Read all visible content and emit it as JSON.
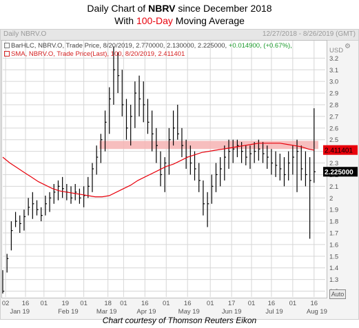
{
  "title": {
    "line1_prefix": "Daily Chart of ",
    "ticker": "NBRV",
    "line1_suffix": " since December 2018",
    "line2_prefix": "With ",
    "period": "100-Day",
    "line2_suffix": " Moving Average"
  },
  "header": {
    "left": "Daily NBRV.O",
    "right": "12/27/2018 - 8/26/2019 (GMT)"
  },
  "legend": {
    "bar_prefix": "BarHLC, NBRV.O, Trade Price, 8/20/2019, 2.770000, 2.130000, 2.225000, ",
    "bar_change": "+0.014900, (+0.67%),",
    "sma": "SMA, NBRV.O, Trade Price(Last), 100, 8/20/2019, 2.411401"
  },
  "auto_label": "Auto",
  "caption": "Chart courtesy of Thomson Reuters Eikon",
  "colors": {
    "price_bars": "#000000",
    "sma_line": "#e8000b",
    "resistance_band": "#f6b3b3",
    "sma_marker": "#e8000b",
    "price_marker": "#000000",
    "grid": "#d6d6d6"
  },
  "chart_data": {
    "type": "bar",
    "style": "HLC bars with moving average line",
    "currency": "USD",
    "y_axis_side": "right",
    "ylim": [
      1.15,
      3.35
    ],
    "y_ticks": [
      1.2,
      1.3,
      1.4,
      1.5,
      1.6,
      1.7,
      1.8,
      1.9,
      2,
      2.1,
      2.2,
      2.3,
      2.4,
      2.5,
      2.6,
      2.7,
      2.8,
      2.9,
      3.0,
      3.1,
      3.2
    ],
    "y_tick_labels": [
      "1.2",
      "1.3",
      "1.4",
      "1.5",
      "1.6",
      "1.7",
      "1.8",
      "1.9",
      "2",
      "2.1",
      "2.2",
      "2.3",
      "2.4",
      "2.5",
      "2.6",
      "2.7",
      "2.8",
      "2.9",
      "3.0",
      "3.1",
      "3.2"
    ],
    "x_ticks": [
      {
        "day": 2,
        "label": "02"
      },
      {
        "day": 16,
        "label": "16"
      },
      {
        "day": 29,
        "label": "01"
      },
      {
        "day": 44,
        "label": "19"
      },
      {
        "day": 57,
        "label": "01"
      },
      {
        "day": 74,
        "label": "18"
      },
      {
        "day": 85,
        "label": "01"
      },
      {
        "day": 100,
        "label": "16"
      },
      {
        "day": 115,
        "label": "01"
      },
      {
        "day": 130,
        "label": "16"
      },
      {
        "day": 146,
        "label": "01"
      },
      {
        "day": 161,
        "label": "17"
      },
      {
        "day": 175,
        "label": "01"
      },
      {
        "day": 189,
        "label": "16"
      },
      {
        "day": 204,
        "label": "01"
      },
      {
        "day": 219,
        "label": "16"
      }
    ],
    "months": [
      {
        "day": 12,
        "label": "Jan 19"
      },
      {
        "day": 46,
        "label": "Feb 19"
      },
      {
        "day": 73,
        "label": "Mar 19"
      },
      {
        "day": 101,
        "label": "Apr 19"
      },
      {
        "day": 131,
        "label": "May 19"
      },
      {
        "day": 161,
        "label": "Jun 19"
      },
      {
        "day": 191,
        "label": "Jul 19"
      },
      {
        "day": 221,
        "label": "Aug 19"
      }
    ],
    "x_range": [
      0,
      222
    ],
    "band": {
      "from": 2.42,
      "to": 2.49
    },
    "last_sma": {
      "value": 2.411401,
      "label": "2.411401"
    },
    "last_price": {
      "value": 2.225,
      "label": "2.225000"
    },
    "bar_step": 3,
    "ohlc_bars": [
      [
        0,
        1.18,
        1.38,
        1.2
      ],
      [
        3,
        1.36,
        1.52,
        1.48
      ],
      [
        6,
        1.55,
        1.8,
        1.72
      ],
      [
        9,
        1.75,
        1.88,
        1.8
      ],
      [
        12,
        1.7,
        1.85,
        1.78
      ],
      [
        15,
        1.72,
        1.9,
        1.84
      ],
      [
        18,
        1.85,
        2.0,
        1.92
      ],
      [
        21,
        1.82,
        2.05,
        1.95
      ],
      [
        24,
        1.85,
        1.98,
        1.9
      ],
      [
        27,
        1.8,
        1.92,
        1.85
      ],
      [
        30,
        1.85,
        2.02,
        1.95
      ],
      [
        33,
        1.88,
        2.05,
        2.0
      ],
      [
        36,
        1.95,
        2.12,
        2.05
      ],
      [
        39,
        1.98,
        2.15,
        2.1
      ],
      [
        42,
        2.0,
        2.18,
        2.08
      ],
      [
        45,
        1.98,
        2.12,
        2.05
      ],
      [
        48,
        1.95,
        2.1,
        2.0
      ],
      [
        51,
        1.98,
        2.12,
        2.05
      ],
      [
        54,
        1.95,
        2.08,
        2.0
      ],
      [
        57,
        1.92,
        2.1,
        2.02
      ],
      [
        60,
        2.0,
        2.18,
        2.1
      ],
      [
        63,
        2.05,
        2.3,
        2.25
      ],
      [
        66,
        2.2,
        2.45,
        2.35
      ],
      [
        69,
        2.3,
        2.55,
        2.5
      ],
      [
        72,
        2.4,
        2.75,
        2.65
      ],
      [
        75,
        2.55,
        2.95,
        2.85
      ],
      [
        78,
        2.8,
        3.3,
        3.1
      ],
      [
        81,
        2.9,
        3.25,
        3.05
      ],
      [
        84,
        2.7,
        3.1,
        2.8
      ],
      [
        87,
        2.5,
        2.85,
        2.6
      ],
      [
        90,
        2.45,
        2.8,
        2.7
      ],
      [
        93,
        2.6,
        3.0,
        2.9
      ],
      [
        96,
        2.7,
        3.05,
        2.85
      ],
      [
        99,
        2.65,
        3.0,
        2.8
      ],
      [
        102,
        2.55,
        2.85,
        2.65
      ],
      [
        105,
        2.4,
        2.75,
        2.55
      ],
      [
        108,
        2.3,
        2.6,
        2.45
      ],
      [
        111,
        2.1,
        2.4,
        2.2
      ],
      [
        114,
        2.05,
        2.35,
        2.3
      ],
      [
        117,
        2.2,
        2.6,
        2.5
      ],
      [
        120,
        2.45,
        2.75,
        2.6
      ],
      [
        123,
        2.5,
        2.8,
        2.55
      ],
      [
        126,
        2.35,
        2.6,
        2.45
      ],
      [
        129,
        2.25,
        2.5,
        2.35
      ],
      [
        132,
        2.2,
        2.45,
        2.3
      ],
      [
        135,
        2.15,
        2.4,
        2.25
      ],
      [
        138,
        2.05,
        2.3,
        2.15
      ],
      [
        141,
        1.85,
        2.15,
        1.95
      ],
      [
        144,
        1.75,
        2.05,
        1.95
      ],
      [
        147,
        1.95,
        2.2,
        2.1
      ],
      [
        150,
        2.05,
        2.3,
        2.2
      ],
      [
        153,
        2.1,
        2.35,
        2.25
      ],
      [
        156,
        2.15,
        2.45,
        2.35
      ],
      [
        159,
        2.25,
        2.5,
        2.4
      ],
      [
        162,
        2.3,
        2.5,
        2.42
      ],
      [
        165,
        2.35,
        2.5,
        2.45
      ],
      [
        168,
        2.3,
        2.48,
        2.4
      ],
      [
        171,
        2.28,
        2.45,
        2.35
      ],
      [
        174,
        2.25,
        2.45,
        2.38
      ],
      [
        177,
        2.3,
        2.48,
        2.4
      ],
      [
        180,
        2.32,
        2.5,
        2.42
      ],
      [
        183,
        2.3,
        2.48,
        2.38
      ],
      [
        186,
        2.25,
        2.45,
        2.35
      ],
      [
        189,
        2.2,
        2.42,
        2.3
      ],
      [
        192,
        2.18,
        2.4,
        2.28
      ],
      [
        195,
        2.15,
        2.38,
        2.25
      ],
      [
        198,
        2.1,
        2.35,
        2.2
      ],
      [
        201,
        2.15,
        2.4,
        2.3
      ],
      [
        204,
        2.2,
        2.45,
        2.35
      ],
      [
        207,
        2.05,
        2.5,
        2.4
      ],
      [
        210,
        2.15,
        2.45,
        2.25
      ],
      [
        213,
        2.1,
        2.4,
        2.2
      ],
      [
        216,
        1.65,
        2.35,
        2.15
      ],
      [
        219,
        2.13,
        2.77,
        2.225
      ]
    ],
    "sma_points": [
      [
        0,
        2.35
      ],
      [
        5,
        2.3
      ],
      [
        10,
        2.26
      ],
      [
        15,
        2.22
      ],
      [
        20,
        2.18
      ],
      [
        25,
        2.14
      ],
      [
        30,
        2.11
      ],
      [
        35,
        2.08
      ],
      [
        40,
        2.06
      ],
      [
        45,
        2.05
      ],
      [
        50,
        2.04
      ],
      [
        55,
        2.03
      ],
      [
        60,
        2.02
      ],
      [
        65,
        2.01
      ],
      [
        70,
        2.01
      ],
      [
        75,
        2.02
      ],
      [
        80,
        2.05
      ],
      [
        85,
        2.08
      ],
      [
        90,
        2.11
      ],
      [
        95,
        2.15
      ],
      [
        100,
        2.18
      ],
      [
        105,
        2.21
      ],
      [
        110,
        2.24
      ],
      [
        115,
        2.27
      ],
      [
        120,
        2.29
      ],
      [
        125,
        2.32
      ],
      [
        130,
        2.35
      ],
      [
        135,
        2.37
      ],
      [
        140,
        2.39
      ],
      [
        145,
        2.4
      ],
      [
        150,
        2.41
      ],
      [
        155,
        2.42
      ],
      [
        160,
        2.43
      ],
      [
        165,
        2.44
      ],
      [
        170,
        2.45
      ],
      [
        175,
        2.46
      ],
      [
        180,
        2.47
      ],
      [
        185,
        2.47
      ],
      [
        190,
        2.47
      ],
      [
        195,
        2.47
      ],
      [
        200,
        2.46
      ],
      [
        205,
        2.45
      ],
      [
        210,
        2.44
      ],
      [
        215,
        2.42
      ],
      [
        219,
        2.41
      ]
    ]
  }
}
